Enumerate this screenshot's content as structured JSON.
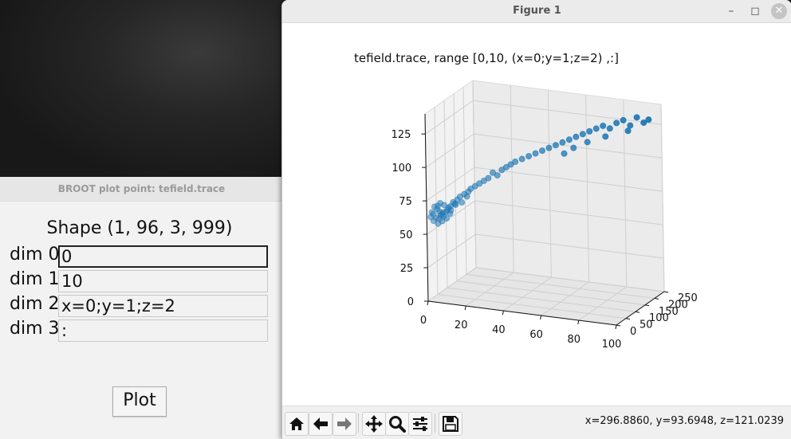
{
  "broot": {
    "title": "BROOT plot point: tefield.trace",
    "shape": "Shape (1, 96, 3, 999)",
    "dims": [
      {
        "label": "dim 0",
        "value": "0"
      },
      {
        "label": "dim 1",
        "value": "10"
      },
      {
        "label": "dim 2",
        "value": "x=0;y=1;z=2"
      },
      {
        "label": "dim 3",
        "value": ":"
      }
    ],
    "plot_label": "Plot"
  },
  "figure": {
    "window_title": "Figure 1",
    "coords": "x=296.8860, y=93.6948, z=121.0239",
    "toolbar_icons": [
      "home-icon",
      "back-icon",
      "forward-icon",
      "pan-icon",
      "zoom-icon",
      "configure-subplots-icon",
      "save-icon"
    ]
  },
  "chart_data": {
    "type": "scatter",
    "title": "tefield.trace, range [0,10, (x=0;y=1;z=2) ,:]",
    "projection": "3d",
    "color": "#1f77b4",
    "xlabel": "",
    "ylabel": "",
    "zlabel": "",
    "xlim": [
      0,
      100
    ],
    "ylim": [
      0,
      250
    ],
    "zlim": [
      0,
      140
    ],
    "x_ticks": [
      "0",
      "20",
      "40",
      "60",
      "80",
      "100"
    ],
    "y_ticks": [
      "0",
      "50",
      "100",
      "150",
      "200",
      "250"
    ],
    "z_ticks": [
      "0",
      "25",
      "50",
      "75",
      "100",
      "125"
    ],
    "grid": true,
    "points": [
      [
        2,
        8,
        66
      ],
      [
        4,
        10,
        62
      ],
      [
        3,
        12,
        70
      ],
      [
        5,
        9,
        58
      ],
      [
        6,
        14,
        64
      ],
      [
        4,
        16,
        68
      ],
      [
        7,
        11,
        60
      ],
      [
        8,
        13,
        72
      ],
      [
        5,
        18,
        66
      ],
      [
        9,
        15,
        62
      ],
      [
        10,
        17,
        70
      ],
      [
        6,
        20,
        64
      ],
      [
        11,
        19,
        68
      ],
      [
        12,
        21,
        74
      ],
      [
        8,
        22,
        66
      ],
      [
        13,
        24,
        72
      ],
      [
        14,
        23,
        76
      ],
      [
        10,
        26,
        70
      ],
      [
        15,
        28,
        78
      ],
      [
        16,
        27,
        74
      ],
      [
        17,
        31,
        80
      ],
      [
        12,
        30,
        72
      ],
      [
        19,
        33,
        82
      ],
      [
        20,
        36,
        84
      ],
      [
        18,
        35,
        78
      ],
      [
        22,
        39,
        86
      ],
      [
        24,
        42,
        88
      ],
      [
        26,
        46,
        90
      ],
      [
        28,
        50,
        92
      ],
      [
        30,
        54,
        96
      ],
      [
        32,
        58,
        94
      ],
      [
        34,
        62,
        98
      ],
      [
        36,
        66,
        100
      ],
      [
        38,
        70,
        102
      ],
      [
        40,
        74,
        104
      ],
      [
        43,
        80,
        106
      ],
      [
        46,
        86,
        108
      ],
      [
        49,
        92,
        110
      ],
      [
        52,
        98,
        112
      ],
      [
        55,
        104,
        114
      ],
      [
        58,
        110,
        116
      ],
      [
        61,
        116,
        118
      ],
      [
        64,
        122,
        120
      ],
      [
        67,
        128,
        122
      ],
      [
        70,
        134,
        124
      ],
      [
        73,
        140,
        126
      ],
      [
        76,
        146,
        128
      ],
      [
        79,
        152,
        130
      ],
      [
        82,
        158,
        128
      ],
      [
        85,
        164,
        132
      ],
      [
        88,
        170,
        134
      ],
      [
        91,
        176,
        130
      ],
      [
        94,
        182,
        136
      ],
      [
        97,
        188,
        132
      ],
      [
        99,
        194,
        134
      ],
      [
        62,
        114,
        110
      ],
      [
        66,
        124,
        114
      ],
      [
        72,
        138,
        118
      ],
      [
        80,
        154,
        122
      ],
      [
        90,
        174,
        126
      ],
      [
        3,
        6,
        60
      ],
      [
        2,
        14,
        64
      ],
      [
        4,
        19,
        70
      ],
      [
        6,
        7,
        62
      ],
      [
        7,
        16,
        66
      ],
      [
        9,
        20,
        68
      ],
      [
        11,
        14,
        66
      ],
      [
        1,
        11,
        62
      ],
      [
        5,
        22,
        72
      ],
      [
        8,
        9,
        64
      ]
    ]
  }
}
